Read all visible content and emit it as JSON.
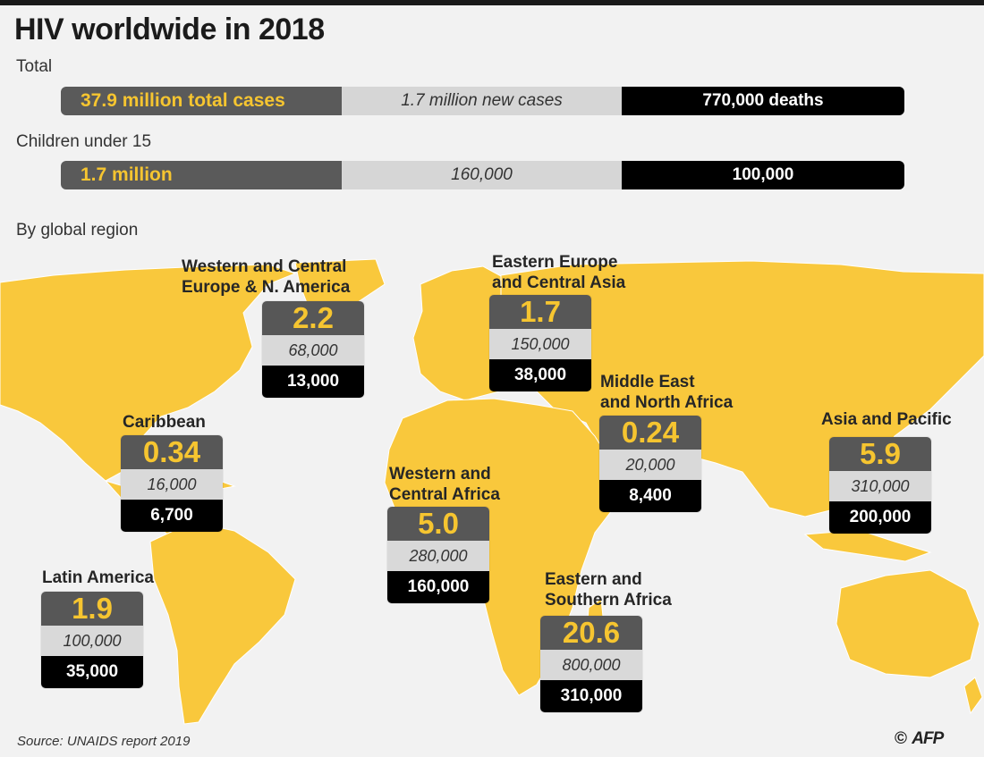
{
  "title": "HIV worldwide in 2018",
  "total": {
    "label": "Total",
    "cases": "37.9 million total cases",
    "new_cases": "1.7 million new cases",
    "deaths": "770,000 deaths"
  },
  "children": {
    "label": "Children under 15",
    "cases": "1.7 million",
    "new_cases": "160,000",
    "deaths": "100,000"
  },
  "region_heading": "By global region",
  "regions": [
    {
      "name": "Western and Central\nEurope & N. America",
      "cases": "2.2",
      "new_cases": "68,000",
      "deaths": "13,000"
    },
    {
      "name": "Eastern Europe\nand Central Asia",
      "cases": "1.7",
      "new_cases": "150,000",
      "deaths": "38,000"
    },
    {
      "name": "Middle East\nand North Africa",
      "cases": "0.24",
      "new_cases": "20,000",
      "deaths": "8,400"
    },
    {
      "name": "Caribbean",
      "cases": "0.34",
      "new_cases": "16,000",
      "deaths": "6,700"
    },
    {
      "name": "Asia and Pacific",
      "cases": "5.9",
      "new_cases": "310,000",
      "deaths": "200,000"
    },
    {
      "name": "Western and\nCentral Africa",
      "cases": "5.0",
      "new_cases": "280,000",
      "deaths": "160,000"
    },
    {
      "name": "Latin America",
      "cases": "1.9",
      "new_cases": "100,000",
      "deaths": "35,000"
    },
    {
      "name": "Eastern and\nSouthern Africa",
      "cases": "20.6",
      "new_cases": "800,000",
      "deaths": "310,000"
    }
  ],
  "source": "Source: UNAIDS report 2019",
  "credit": {
    "copyright": "©",
    "agency": "AFP"
  },
  "colors": {
    "accent": "#f6c530",
    "map": "#f9c83c",
    "dark": "#575757",
    "light": "#d9d9d9",
    "black": "#000000",
    "background": "#f2f2f2"
  },
  "icons": {
    "map": "world-map-graphic"
  }
}
